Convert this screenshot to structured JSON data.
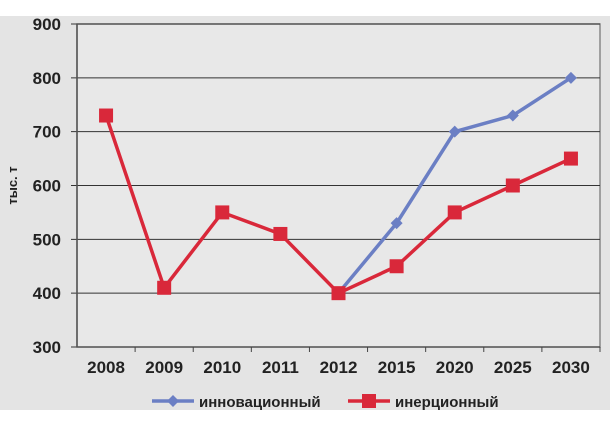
{
  "chart_data": {
    "type": "line",
    "title": "",
    "xlabel": "",
    "ylabel": "тыс. т",
    "categories": [
      "2008",
      "2009",
      "2010",
      "2011",
      "2012",
      "2015",
      "2020",
      "2025",
      "2030"
    ],
    "ylim": [
      300,
      900
    ],
    "yticks": [
      300,
      400,
      500,
      600,
      700,
      800,
      900
    ],
    "grid": true,
    "legend_position": "bottom",
    "series": [
      {
        "name": "инновационный",
        "color": "#6b7fc4",
        "marker": "diamond",
        "values": [
          null,
          null,
          null,
          null,
          400,
          530,
          700,
          730,
          800
        ]
      },
      {
        "name": "инерционный",
        "color": "#d9283a",
        "marker": "square",
        "values": [
          730,
          410,
          550,
          510,
          400,
          450,
          550,
          600,
          650
        ]
      }
    ]
  }
}
